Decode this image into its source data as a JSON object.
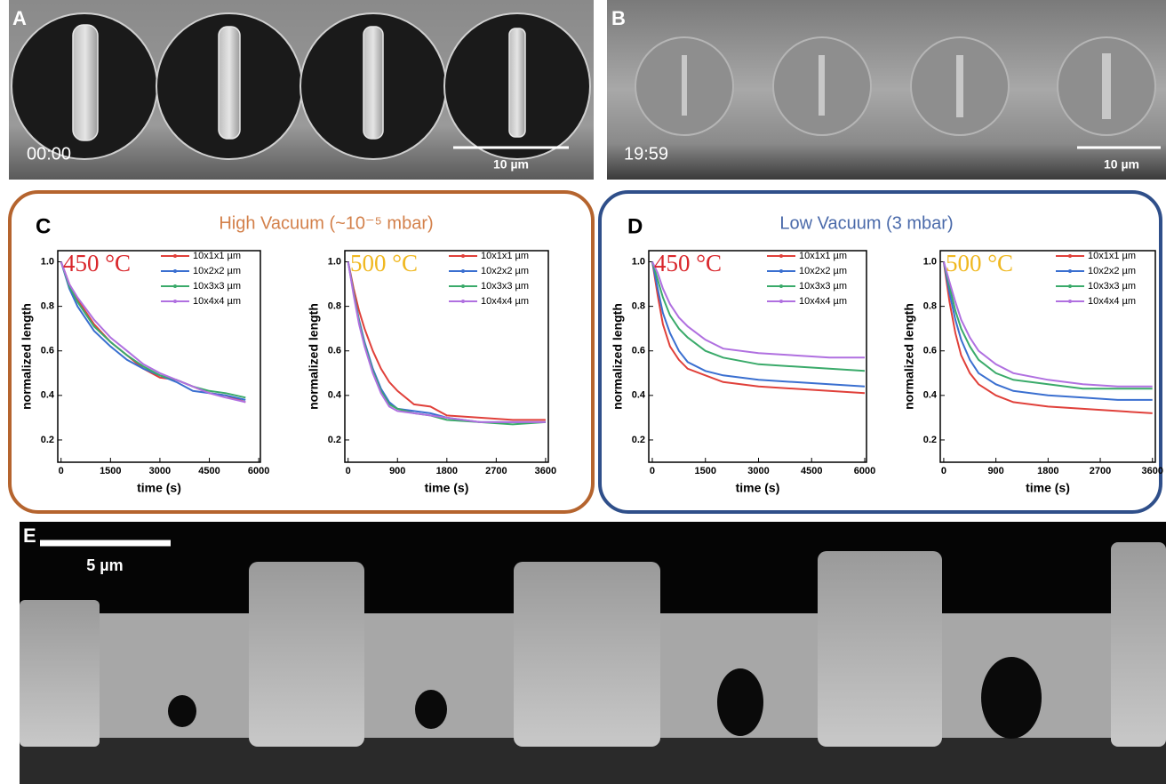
{
  "panels": {
    "A": {
      "label": "A",
      "timestamp": "00:00",
      "scale_bar": "10 µm"
    },
    "B": {
      "label": "B",
      "timestamp": "19:59",
      "scale_bar": "10 µm"
    },
    "C": {
      "label": "C",
      "title": "High Vacuum (~10⁻⁵ mbar)"
    },
    "D": {
      "label": "D",
      "title": "Low Vacuum (3 mbar)"
    },
    "E": {
      "label": "E",
      "scale_bar": "5 µm"
    }
  },
  "chart_data": [
    {
      "type": "line",
      "annotation": "450 °C",
      "annotation_color": "#d9262b",
      "x_label": "time (s)",
      "y_label": "normalized length",
      "xlim": [
        -100,
        6050
      ],
      "xticks": [
        0,
        1500,
        3000,
        4500,
        6000
      ],
      "ylim": [
        0.1,
        1.05
      ],
      "yticks": [
        0.2,
        0.4,
        0.6,
        0.8,
        {
          "value": 1,
          "label": "1.0"
        }
      ],
      "x": [
        0,
        250,
        500,
        1000,
        1500,
        2000,
        2500,
        3000,
        3500,
        4000,
        4500,
        5000,
        5600
      ],
      "series": [
        {
          "name": "10x1x1 µm",
          "color": "#e0403a",
          "values": [
            1.0,
            0.9,
            0.83,
            0.72,
            0.64,
            0.58,
            0.52,
            0.48,
            0.47,
            0.44,
            0.41,
            0.4,
            0.37
          ]
        },
        {
          "name": "10x2x2 µm",
          "color": "#3a6fd0",
          "values": [
            1.0,
            0.88,
            0.8,
            0.69,
            0.62,
            0.56,
            0.52,
            0.49,
            0.46,
            0.42,
            0.41,
            0.4,
            0.38
          ]
        },
        {
          "name": "10x3x3 µm",
          "color": "#3aaa6a",
          "values": [
            1.0,
            0.89,
            0.82,
            0.71,
            0.64,
            0.58,
            0.53,
            0.49,
            0.47,
            0.44,
            0.42,
            0.41,
            0.39
          ]
        },
        {
          "name": "10x4x4 µm",
          "color": "#b070e0",
          "values": [
            1.0,
            0.9,
            0.84,
            0.74,
            0.66,
            0.6,
            0.54,
            0.5,
            0.47,
            0.44,
            0.41,
            0.39,
            0.37
          ]
        }
      ]
    },
    {
      "type": "line",
      "annotation": "500 °C",
      "annotation_color": "#f0b820",
      "x_label": "time (s)",
      "y_label": "normalized length",
      "xlim": [
        -60,
        3650
      ],
      "xticks": [
        0,
        900,
        1800,
        2700,
        3600
      ],
      "ylim": [
        0.1,
        1.05
      ],
      "yticks": [
        0.2,
        0.4,
        0.6,
        0.8,
        {
          "value": 1,
          "label": "1.0"
        }
      ],
      "x": [
        0,
        100,
        200,
        300,
        450,
        600,
        750,
        900,
        1200,
        1500,
        1800,
        2400,
        3000,
        3600
      ],
      "series": [
        {
          "name": "10x1x1 µm",
          "color": "#e0403a",
          "values": [
            1.0,
            0.88,
            0.78,
            0.7,
            0.6,
            0.52,
            0.46,
            0.42,
            0.36,
            0.35,
            0.31,
            0.3,
            0.29,
            0.29
          ]
        },
        {
          "name": "10x2x2 µm",
          "color": "#3a6fd0",
          "values": [
            1.0,
            0.86,
            0.74,
            0.64,
            0.52,
            0.43,
            0.37,
            0.34,
            0.33,
            0.32,
            0.3,
            0.28,
            0.28,
            0.28
          ]
        },
        {
          "name": "10x3x3 µm",
          "color": "#3aaa6a",
          "values": [
            1.0,
            0.86,
            0.73,
            0.63,
            0.51,
            0.42,
            0.36,
            0.34,
            0.32,
            0.31,
            0.29,
            0.28,
            0.27,
            0.28
          ]
        },
        {
          "name": "10x4x4 µm",
          "color": "#b070e0",
          "values": [
            1.0,
            0.85,
            0.72,
            0.62,
            0.5,
            0.41,
            0.35,
            0.33,
            0.32,
            0.31,
            0.3,
            0.28,
            0.28,
            0.28
          ]
        }
      ]
    },
    {
      "type": "line",
      "annotation": "450 °C",
      "annotation_color": "#d9262b",
      "x_label": "time (s)",
      "y_label": "normalized length",
      "xlim": [
        -100,
        6050
      ],
      "xticks": [
        0,
        1500,
        3000,
        4500,
        6000
      ],
      "ylim": [
        0.1,
        1.05
      ],
      "yticks": [
        0.2,
        0.4,
        0.6,
        0.8,
        {
          "value": 1,
          "label": "1.0"
        }
      ],
      "x": [
        0,
        150,
        300,
        500,
        750,
        1000,
        1500,
        2000,
        3000,
        4000,
        5000,
        6000
      ],
      "series": [
        {
          "name": "10x1x1 µm",
          "color": "#e0403a",
          "values": [
            1.0,
            0.85,
            0.72,
            0.62,
            0.56,
            0.52,
            0.49,
            0.46,
            0.44,
            0.43,
            0.42,
            0.41
          ]
        },
        {
          "name": "10x2x2 µm",
          "color": "#3a6fd0",
          "values": [
            1.0,
            0.88,
            0.77,
            0.68,
            0.6,
            0.55,
            0.51,
            0.49,
            0.47,
            0.46,
            0.45,
            0.44
          ]
        },
        {
          "name": "10x3x3 µm",
          "color": "#3aaa6a",
          "values": [
            1.0,
            0.92,
            0.84,
            0.76,
            0.7,
            0.66,
            0.6,
            0.57,
            0.54,
            0.53,
            0.52,
            0.51
          ]
        },
        {
          "name": "10x4x4 µm",
          "color": "#b070e0",
          "values": [
            1.0,
            0.95,
            0.88,
            0.81,
            0.75,
            0.71,
            0.65,
            0.61,
            0.59,
            0.58,
            0.57,
            0.57
          ]
        }
      ]
    },
    {
      "type": "line",
      "annotation": "500 °C",
      "annotation_color": "#f0b820",
      "x_label": "time (s)",
      "y_label": "normalized length",
      "xlim": [
        -60,
        3650
      ],
      "xticks": [
        0,
        900,
        1800,
        2700,
        3600
      ],
      "ylim": [
        0.1,
        1.05
      ],
      "yticks": [
        0.2,
        0.4,
        0.6,
        0.8,
        {
          "value": 1,
          "label": "1.0"
        }
      ],
      "x": [
        0,
        100,
        200,
        300,
        450,
        600,
        900,
        1200,
        1800,
        2400,
        3000,
        3600
      ],
      "series": [
        {
          "name": "10x1x1 µm",
          "color": "#e0403a",
          "values": [
            1.0,
            0.82,
            0.68,
            0.58,
            0.5,
            0.45,
            0.4,
            0.37,
            0.35,
            0.34,
            0.33,
            0.32
          ]
        },
        {
          "name": "10x2x2 µm",
          "color": "#3a6fd0",
          "values": [
            1.0,
            0.86,
            0.74,
            0.65,
            0.56,
            0.5,
            0.45,
            0.42,
            0.4,
            0.39,
            0.38,
            0.38
          ]
        },
        {
          "name": "10x3x3 µm",
          "color": "#3aaa6a",
          "values": [
            1.0,
            0.89,
            0.78,
            0.7,
            0.62,
            0.56,
            0.5,
            0.47,
            0.45,
            0.43,
            0.43,
            0.43
          ]
        },
        {
          "name": "10x4x4 µm",
          "color": "#b070e0",
          "values": [
            1.0,
            0.91,
            0.82,
            0.74,
            0.66,
            0.6,
            0.54,
            0.5,
            0.47,
            0.45,
            0.44,
            0.44
          ]
        }
      ]
    }
  ]
}
